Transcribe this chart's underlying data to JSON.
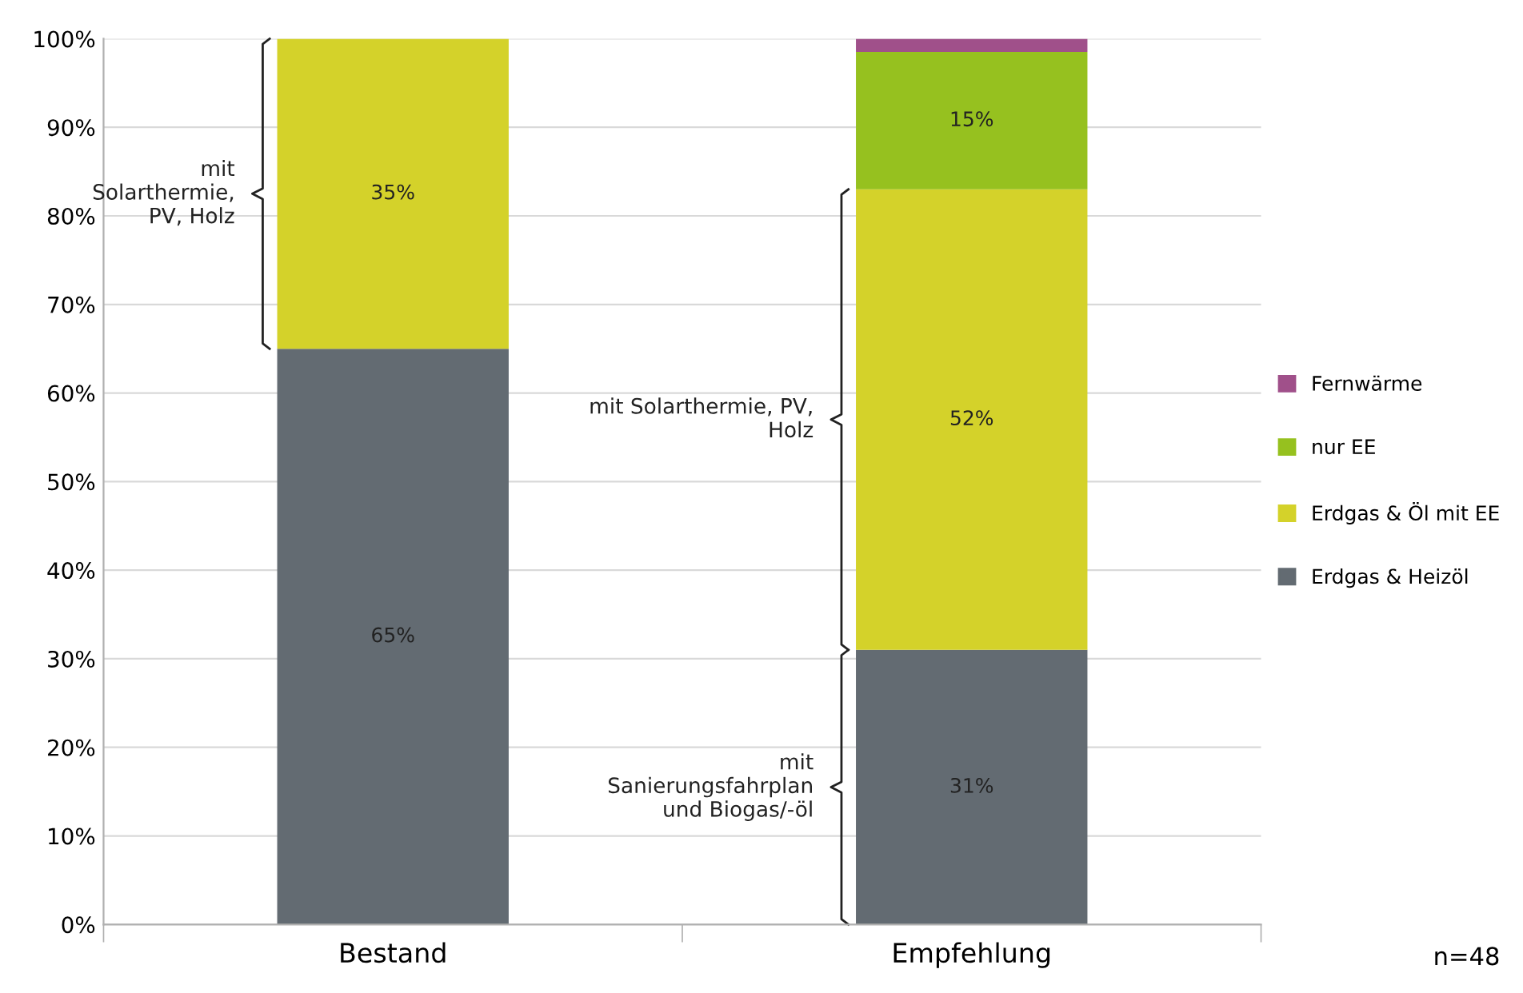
{
  "chart_data": {
    "type": "bar",
    "stacked": true,
    "categories": [
      "Bestand",
      "Empfehlung"
    ],
    "series": [
      {
        "name": "Erdgas & Heizöl",
        "color": "#636b72",
        "values": [
          65,
          31
        ],
        "value_labels": [
          "65%",
          "31%"
        ]
      },
      {
        "name": "Erdgas & Öl mit EE",
        "color": "#d4d22a",
        "values": [
          35,
          52
        ],
        "value_labels": [
          "35%",
          "52%"
        ]
      },
      {
        "name": "nur EE",
        "color": "#96c11f",
        "values": [
          0,
          15.5
        ],
        "value_labels": [
          null,
          "15%"
        ]
      },
      {
        "name": "Fernwärme",
        "color": "#a0508a",
        "values": [
          0,
          1.5
        ],
        "value_labels": [
          null,
          null
        ]
      }
    ],
    "ylim": [
      0,
      100
    ],
    "yticks": [
      {
        "value": 0,
        "label": "0%"
      },
      {
        "value": 10,
        "label": "10%"
      },
      {
        "value": 20,
        "label": "20%"
      },
      {
        "value": 30,
        "label": "30%"
      },
      {
        "value": 40,
        "label": "40%"
      },
      {
        "value": 50,
        "label": "50%"
      },
      {
        "value": 60,
        "label": "60%"
      },
      {
        "value": 70,
        "label": "70%"
      },
      {
        "value": 80,
        "label": "80%"
      },
      {
        "value": 90,
        "label": "90%"
      },
      {
        "value": 100,
        "label": "100%"
      }
    ],
    "grid": "y",
    "legend": "right",
    "annotations": [
      "mit\nSolarthermie,\nPV, Holz",
      "mit Solarthermie, PV,\nHolz",
      "mit\nSanierungsfahrplan\nund Biogas/-öl",
      "n=48"
    ]
  }
}
